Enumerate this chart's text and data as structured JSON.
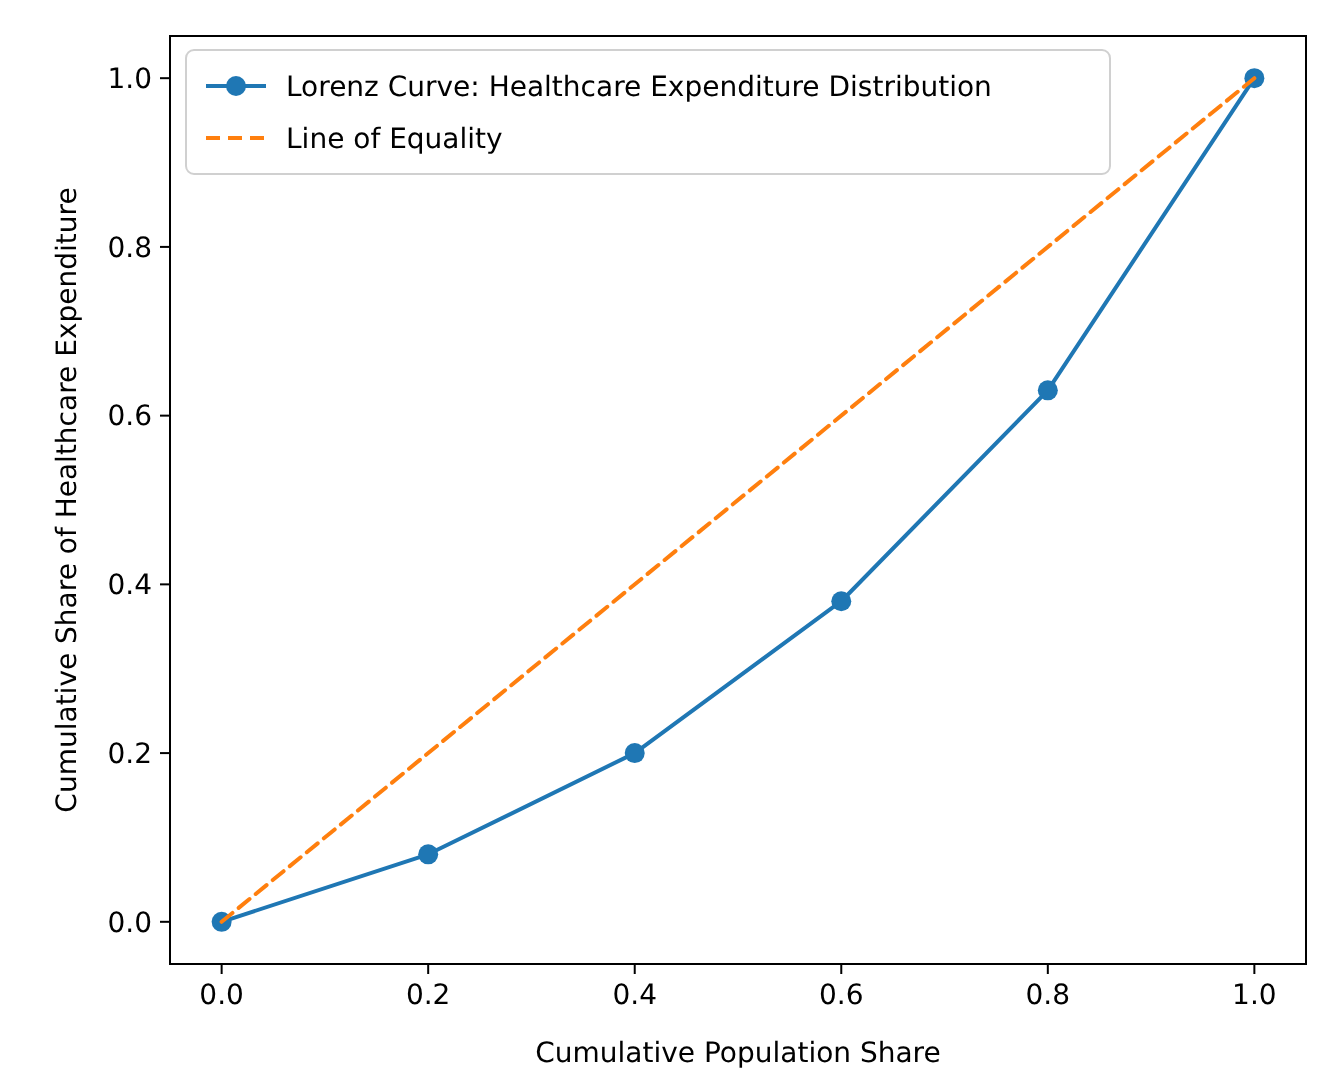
{
  "chart_data": {
    "type": "line",
    "xlabel": "Cumulative Population Share",
    "ylabel": "Cumulative Share of Healthcare Expenditure",
    "x": [
      0,
      0.2,
      0.4,
      0.6,
      0.8,
      1.0
    ],
    "series": [
      {
        "name": "Lorenz Curve: Healthcare Expenditure Distribution",
        "color": "#1f77b4",
        "values": [
          0,
          0.08,
          0.2,
          0.38,
          0.63,
          1.0
        ],
        "marker": "circle",
        "line_style": "solid"
      },
      {
        "name": "Line of Equality",
        "color": "#ff7f0e",
        "x": [
          0,
          1
        ],
        "values": [
          0,
          1
        ],
        "marker": "none",
        "line_style": "dashed"
      }
    ],
    "xlim": [
      -0.05,
      1.05
    ],
    "ylim": [
      -0.05,
      1.05
    ],
    "xticks": [
      {
        "value": 0,
        "label": "0.0"
      },
      {
        "value": 0.2,
        "label": "0.2"
      },
      {
        "value": 0.4,
        "label": "0.4"
      },
      {
        "value": 0.6,
        "label": "0.6"
      },
      {
        "value": 0.8,
        "label": "0.8"
      },
      {
        "value": 1,
        "label": "1.0"
      }
    ],
    "yticks": [
      {
        "value": 0,
        "label": "0.0"
      },
      {
        "value": 0.2,
        "label": "0.2"
      },
      {
        "value": 0.4,
        "label": "0.4"
      },
      {
        "value": 0.6,
        "label": "0.6"
      },
      {
        "value": 0.8,
        "label": "0.8"
      },
      {
        "value": 1,
        "label": "1.0"
      }
    ],
    "grid": false,
    "legend": "top left"
  }
}
